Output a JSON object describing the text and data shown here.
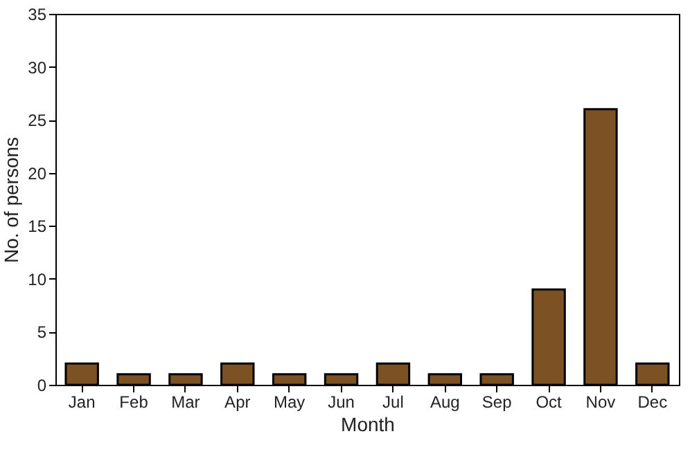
{
  "chart_data": {
    "type": "bar",
    "xlabel": "Month",
    "ylabel": "No. of persons",
    "categories": [
      "Jan",
      "Feb",
      "Mar",
      "Apr",
      "May",
      "Jun",
      "Jul",
      "Aug",
      "Sep",
      "Oct",
      "Nov",
      "Dec"
    ],
    "values": [
      2,
      1,
      1,
      2,
      1,
      1,
      2,
      1,
      1,
      9,
      26,
      2
    ],
    "color": "#7c5124",
    "ylim": [
      0,
      35
    ],
    "yticks": [
      0,
      5,
      10,
      15,
      20,
      25,
      30,
      35
    ]
  }
}
